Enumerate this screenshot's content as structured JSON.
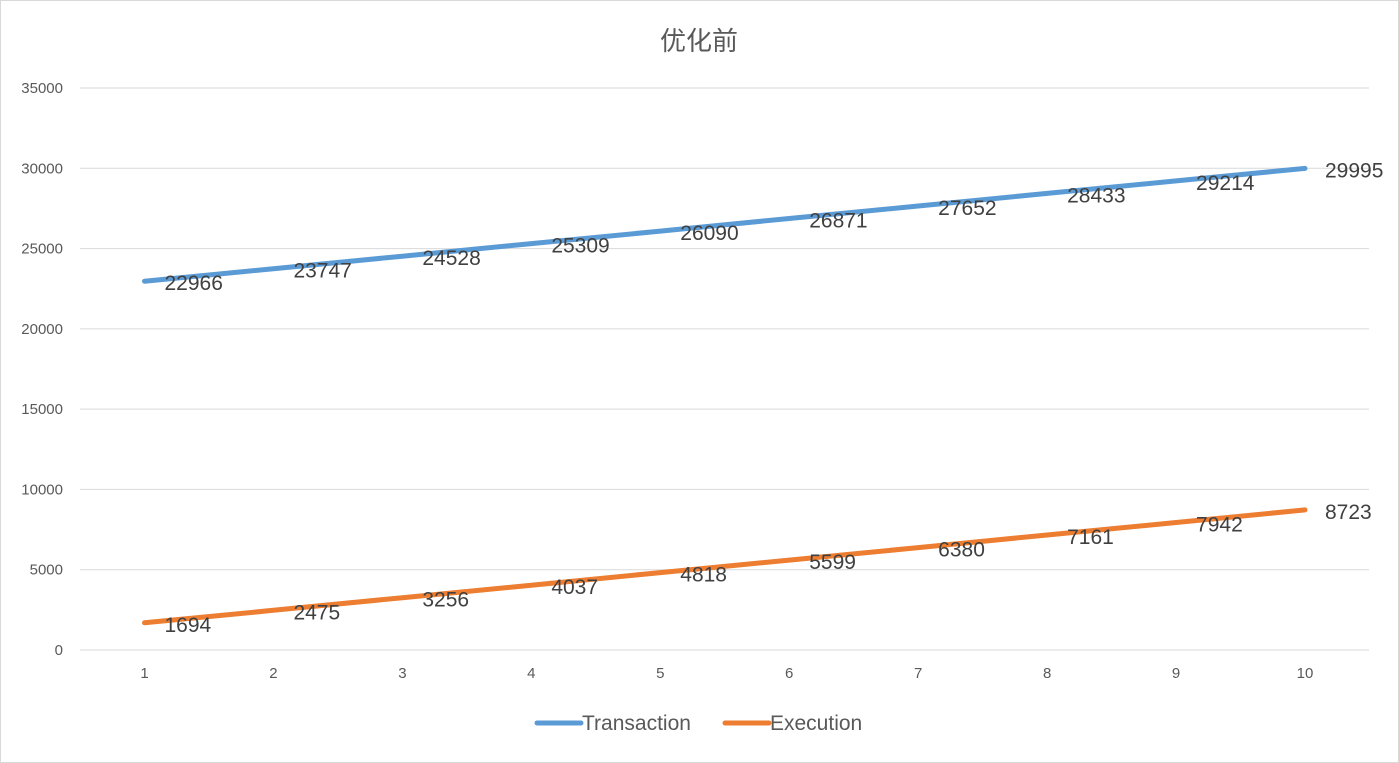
{
  "chart_data": {
    "type": "line",
    "title": "优化前",
    "xlabel": "",
    "ylabel": "",
    "categories": [
      "1",
      "2",
      "3",
      "4",
      "5",
      "6",
      "7",
      "8",
      "9",
      "10"
    ],
    "ylim": [
      0,
      35000
    ],
    "yticks": [
      0,
      5000,
      10000,
      15000,
      20000,
      25000,
      30000,
      35000
    ],
    "grid": true,
    "legend_position": "bottom",
    "series": [
      {
        "name": "Transaction",
        "color": "#5b9bd5",
        "values": [
          22966,
          23747,
          24528,
          25309,
          26090,
          26871,
          27652,
          28433,
          29214,
          29995
        ]
      },
      {
        "name": "Execution",
        "color": "#ed7d31",
        "values": [
          1694,
          2475,
          3256,
          4037,
          4818,
          5599,
          6380,
          7161,
          7942,
          8723
        ]
      }
    ]
  }
}
